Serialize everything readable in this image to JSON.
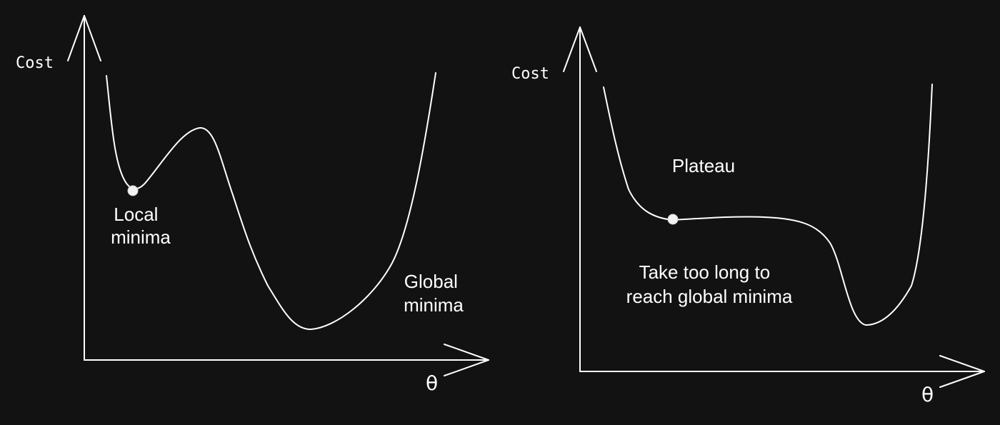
{
  "diagrams": [
    {
      "y_axis_label": "Cost",
      "x_axis_label": "θ",
      "annotations": {
        "local_minima": [
          "Local",
          "minima"
        ],
        "global_minima": [
          "Global",
          "minima"
        ]
      }
    },
    {
      "y_axis_label": "Cost",
      "x_axis_label": "θ",
      "annotations": {
        "plateau": "Plateau",
        "note": [
          "Take too long to",
          "reach global minima"
        ]
      }
    }
  ],
  "colors": {
    "background": "#121212",
    "foreground": "#ffffff",
    "marker": "#f2f2f2"
  }
}
